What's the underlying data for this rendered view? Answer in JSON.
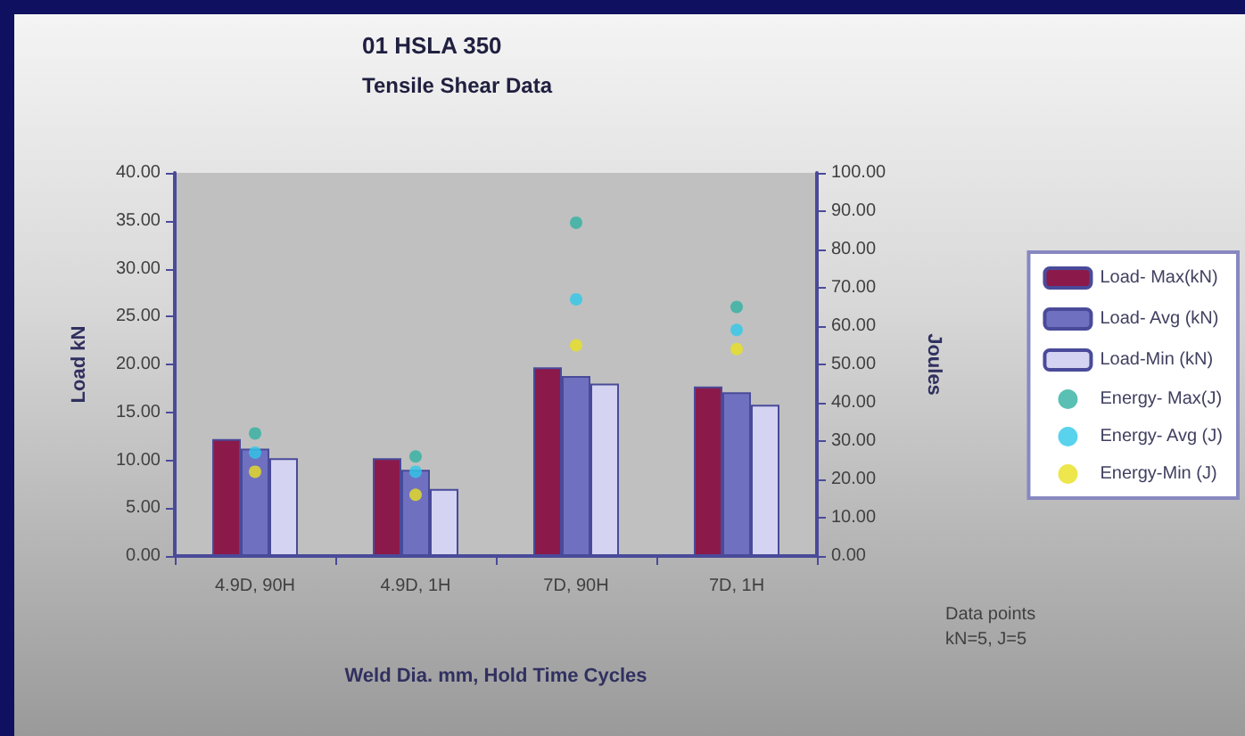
{
  "chart_data": {
    "type": "bar",
    "title": "01 HSLA 350",
    "subtitle": "Tensile Shear Data",
    "xlabel": "Weld Dia. mm, Hold Time Cycles",
    "ylabel": "Load kN",
    "y2label": "Joules",
    "categories": [
      "4.9D, 90H",
      "4.9D, 1H",
      "7D, 90H",
      "7D, 1H"
    ],
    "series": [
      {
        "name": "Load- Max(kN)",
        "color": "#8b1a4a",
        "values": [
          12.2,
          10.2,
          19.7,
          17.7
        ]
      },
      {
        "name": "Load- Avg (kN)",
        "color": "#7070c0",
        "values": [
          11.2,
          9.0,
          18.8,
          17.1
        ]
      },
      {
        "name": "Load-Min (kN)",
        "color": "#d4d4f2",
        "values": [
          10.2,
          7.0,
          18.0,
          15.8
        ]
      },
      {
        "name": "Energy- Max(J)",
        "type": "scatter",
        "axis": "y2",
        "color": "#30b0a0",
        "x": [
          "4.9D, 90H",
          "4.9D, 1H",
          "7D, 90H",
          "7D, 1H"
        ],
        "values": [
          32,
          26,
          87,
          65
        ]
      },
      {
        "name": "Energy- Avg (J)",
        "type": "scatter",
        "axis": "y2",
        "color": "#30c8e8",
        "x": [
          "4.9D, 90H",
          "4.9D, 1H",
          "7D, 90H",
          "7D, 1H"
        ],
        "values": [
          27,
          22,
          67,
          59
        ]
      },
      {
        "name": "Energy-Min (J)",
        "type": "scatter",
        "axis": "y2",
        "color": "#e8e020",
        "x": [
          "4.9D, 90H",
          "4.9D, 1H",
          "7D, 90H",
          "7D, 1H"
        ],
        "values": [
          22,
          16,
          55,
          54
        ]
      }
    ],
    "marker": "circle",
    "ylim": [
      0,
      40
    ],
    "yticks": [
      {
        "value": 0,
        "label": "0.00"
      },
      {
        "value": 5,
        "label": "5.00"
      },
      {
        "value": 10,
        "label": "10.00"
      },
      {
        "value": 15,
        "label": "15.00"
      },
      {
        "value": 20,
        "label": "20.00"
      },
      {
        "value": 25,
        "label": "25.00"
      },
      {
        "value": 30,
        "label": "30.00"
      },
      {
        "value": 35,
        "label": "35.00"
      },
      {
        "value": 40,
        "label": "40.00"
      }
    ],
    "y2lim": [
      0,
      100
    ],
    "y2ticks": [
      {
        "value": 0,
        "label": "0.00"
      },
      {
        "value": 10,
        "label": "10.00"
      },
      {
        "value": 20,
        "label": "20.00"
      },
      {
        "value": 30,
        "label": "30.00"
      },
      {
        "value": 40,
        "label": "40.00"
      },
      {
        "value": 50,
        "label": "50.00"
      },
      {
        "value": 60,
        "label": "60.00"
      },
      {
        "value": 70,
        "label": "70.00"
      },
      {
        "value": 80,
        "label": "80.00"
      },
      {
        "value": 90,
        "label": "90.00"
      },
      {
        "value": 100,
        "label": "100.00"
      }
    ],
    "legend": "right",
    "annotations": [
      "Data points kN=5, J=5"
    ]
  }
}
